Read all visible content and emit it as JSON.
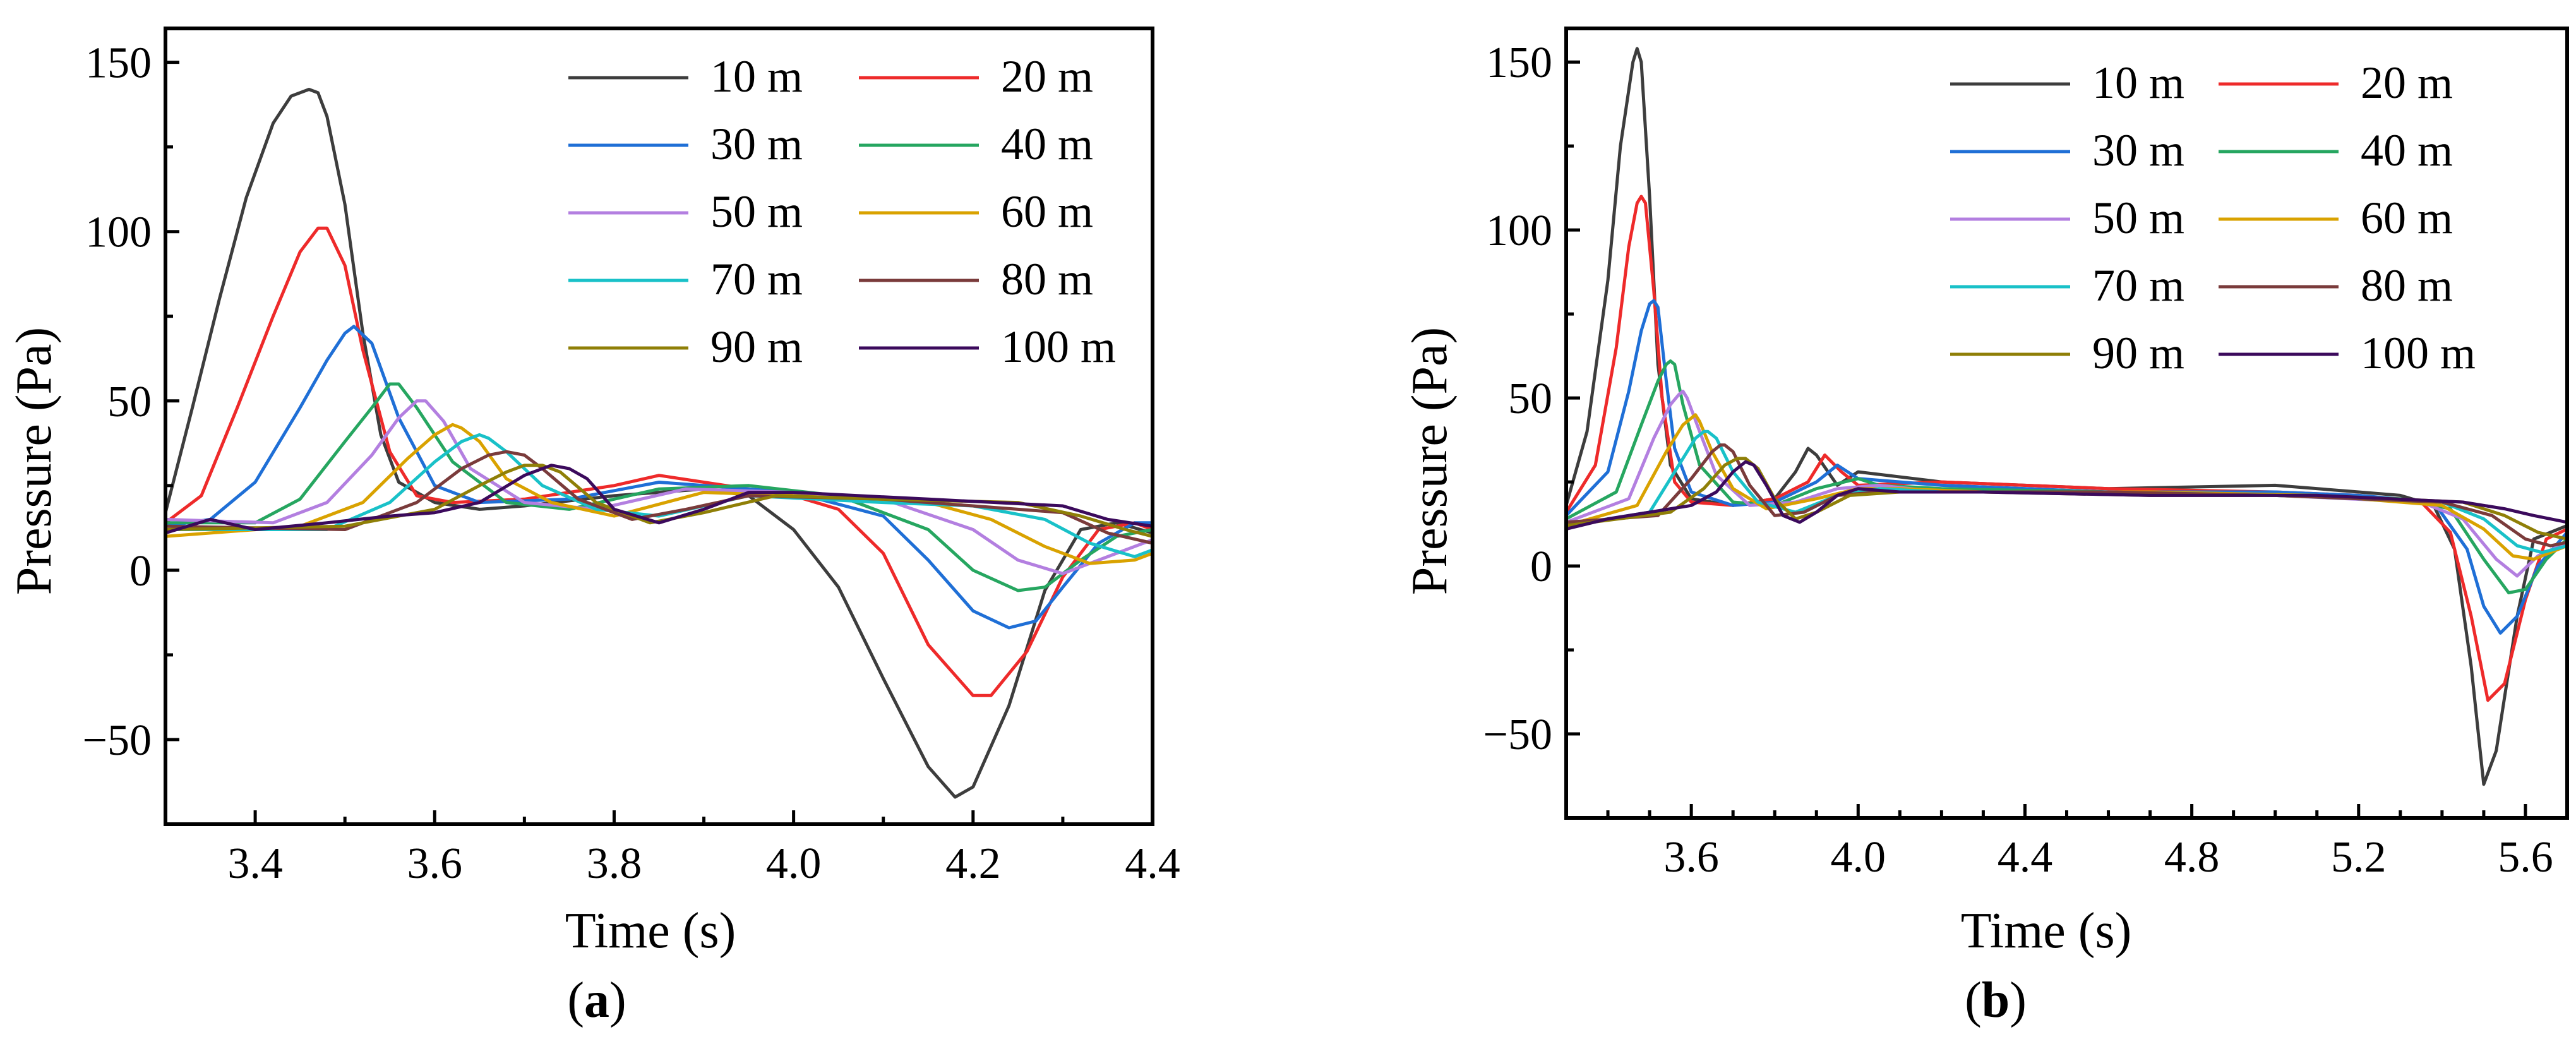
{
  "figure": {
    "panel_labels": [
      "a",
      "b"
    ]
  },
  "legend_entries": [
    "10 m",
    "20 m",
    "30 m",
    "40 m",
    "50 m",
    "60 m",
    "70 m",
    "80 m",
    "90 m",
    "100 m"
  ],
  "series_colors": [
    "#3d3d3d",
    "#ee2a2a",
    "#1f6fd6",
    "#26a660",
    "#b37fe0",
    "#d9a200",
    "#19c1c8",
    "#7a3b3b",
    "#8f7f07",
    "#3b0a5c"
  ],
  "chart_data": [
    {
      "type": "line",
      "panel": "a",
      "title": "",
      "xlabel": "Time (s)",
      "ylabel": "Pressure (Pa)",
      "xlim": [
        3.3,
        4.4
      ],
      "ylim": [
        -75,
        160
      ],
      "xticks": [
        3.4,
        3.6,
        3.8,
        4.0,
        4.2,
        4.4
      ],
      "xtick_labels": [
        "3.4",
        "3.6",
        "3.8",
        "4.0",
        "4.2",
        "4.4"
      ],
      "yticks": [
        -50,
        0,
        50,
        100,
        150
      ],
      "ytick_labels": [
        "−50",
        "0",
        "50",
        "100",
        "150"
      ],
      "legend_placement": "top-right",
      "series": [
        {
          "name": "10 m",
          "x": [
            3.3,
            3.33,
            3.36,
            3.39,
            3.42,
            3.44,
            3.46,
            3.47,
            3.48,
            3.5,
            3.52,
            3.54,
            3.56,
            3.6,
            3.65,
            3.7,
            3.8,
            3.9,
            3.95,
            4.0,
            4.05,
            4.1,
            4.15,
            4.18,
            4.2,
            4.24,
            4.28,
            4.32,
            4.36,
            4.4
          ],
          "values": [
            17,
            48,
            80,
            110,
            132,
            140,
            142,
            141,
            134,
            108,
            70,
            40,
            26,
            20,
            18,
            19,
            22,
            24,
            22,
            12,
            -5,
            -32,
            -58,
            -67,
            -64,
            -40,
            -6,
            12,
            14,
            11
          ]
        },
        {
          "name": "20 m",
          "x": [
            3.3,
            3.34,
            3.38,
            3.42,
            3.45,
            3.47,
            3.48,
            3.5,
            3.52,
            3.55,
            3.58,
            3.62,
            3.7,
            3.8,
            3.85,
            3.9,
            4.0,
            4.05,
            4.1,
            4.15,
            4.2,
            4.22,
            4.26,
            4.3,
            4.34,
            4.38,
            4.4
          ],
          "values": [
            14,
            22,
            48,
            75,
            94,
            101,
            101,
            90,
            65,
            35,
            22,
            20,
            21,
            25,
            28,
            26,
            22,
            18,
            5,
            -22,
            -37,
            -37,
            -24,
            -2,
            12,
            14,
            12
          ]
        },
        {
          "name": "30 m",
          "x": [
            3.3,
            3.35,
            3.4,
            3.45,
            3.48,
            3.5,
            3.51,
            3.53,
            3.56,
            3.6,
            3.65,
            3.75,
            3.85,
            3.9,
            4.0,
            4.1,
            4.15,
            4.2,
            4.24,
            4.27,
            4.3,
            4.34,
            4.38,
            4.4
          ],
          "values": [
            13,
            15,
            26,
            48,
            62,
            70,
            72,
            67,
            45,
            25,
            20,
            21,
            26,
            25,
            23,
            16,
            3,
            -12,
            -17,
            -15,
            -5,
            8,
            14,
            14
          ]
        },
        {
          "name": "40 m",
          "x": [
            3.3,
            3.4,
            3.45,
            3.5,
            3.53,
            3.55,
            3.56,
            3.58,
            3.62,
            3.68,
            3.75,
            3.85,
            3.95,
            4.05,
            4.15,
            4.2,
            4.25,
            4.28,
            4.32,
            4.36,
            4.4
          ],
          "values": [
            14,
            14,
            21,
            38,
            48,
            55,
            55,
            48,
            32,
            20,
            18,
            24,
            25,
            22,
            12,
            0,
            -6,
            -5,
            3,
            10,
            12
          ]
        },
        {
          "name": "50 m",
          "x": [
            3.3,
            3.42,
            3.48,
            3.53,
            3.56,
            3.58,
            3.59,
            3.61,
            3.64,
            3.7,
            3.78,
            3.88,
            4.0,
            4.1,
            4.2,
            4.25,
            4.3,
            4.35,
            4.4
          ],
          "values": [
            15,
            14,
            20,
            34,
            45,
            50,
            50,
            44,
            30,
            20,
            18,
            24,
            23,
            21,
            12,
            3,
            -1,
            4,
            9
          ]
        },
        {
          "name": "60 m",
          "x": [
            3.3,
            3.45,
            3.52,
            3.57,
            3.6,
            3.62,
            3.63,
            3.65,
            3.68,
            3.73,
            3.8,
            3.9,
            4.0,
            4.15,
            4.22,
            4.28,
            4.33,
            4.38,
            4.4
          ],
          "values": [
            10,
            13,
            20,
            33,
            40,
            43,
            42,
            38,
            27,
            20,
            16,
            23,
            22,
            20,
            15,
            7,
            2,
            3,
            5
          ]
        },
        {
          "name": "70 m",
          "x": [
            3.3,
            3.48,
            3.55,
            3.6,
            3.63,
            3.65,
            3.66,
            3.68,
            3.72,
            3.78,
            3.85,
            3.95,
            4.1,
            4.2,
            4.28,
            4.33,
            4.38,
            4.4
          ],
          "values": [
            12,
            12,
            20,
            32,
            38,
            40,
            39,
            35,
            25,
            18,
            16,
            22,
            20,
            19,
            15,
            8,
            4,
            6
          ]
        },
        {
          "name": "80 m",
          "x": [
            3.3,
            3.5,
            3.58,
            3.63,
            3.66,
            3.68,
            3.7,
            3.72,
            3.76,
            3.82,
            3.88,
            3.95,
            4.1,
            4.2,
            4.3,
            4.35,
            4.4
          ],
          "values": [
            13,
            12,
            20,
            30,
            34,
            35,
            34,
            30,
            21,
            15,
            18,
            22,
            21,
            19,
            17,
            11,
            8
          ]
        },
        {
          "name": "90 m",
          "x": [
            3.3,
            3.5,
            3.6,
            3.65,
            3.68,
            3.7,
            3.72,
            3.74,
            3.78,
            3.84,
            3.9,
            3.98,
            4.1,
            4.25,
            4.32,
            4.37,
            4.4
          ],
          "values": [
            12,
            13,
            18,
            25,
            29,
            31,
            31,
            29,
            20,
            14,
            17,
            22,
            21,
            20,
            16,
            12,
            10
          ]
        },
        {
          "name": "100 m",
          "x": [
            3.3,
            3.35,
            3.4,
            3.48,
            3.55,
            3.6,
            3.65,
            3.7,
            3.73,
            3.75,
            3.77,
            3.8,
            3.85,
            3.9,
            3.95,
            4.0,
            4.15,
            4.3,
            4.35,
            4.4
          ],
          "values": [
            11,
            15,
            12,
            14,
            16,
            17,
            20,
            28,
            31,
            30,
            27,
            18,
            14,
            18,
            23,
            23,
            21,
            19,
            15,
            13
          ]
        }
      ]
    },
    {
      "type": "line",
      "panel": "b",
      "title": "",
      "xlabel": "Time (s)",
      "ylabel": "Pressure (Pa)",
      "xlim": [
        3.3,
        5.7
      ],
      "ylim": [
        -75,
        160
      ],
      "xticks": [
        3.6,
        4.0,
        4.4,
        4.8,
        5.2,
        5.6
      ],
      "xtick_labels": [
        "3.6",
        "4.0",
        "4.4",
        "4.8",
        "5.2",
        "5.6"
      ],
      "yticks": [
        -50,
        0,
        50,
        100,
        150
      ],
      "ytick_labels": [
        "−50",
        "0",
        "50",
        "100",
        "150"
      ],
      "legend_placement": "top-right",
      "series": [
        {
          "name": "10 m",
          "x": [
            3.3,
            3.35,
            3.4,
            3.43,
            3.46,
            3.47,
            3.48,
            3.5,
            3.52,
            3.55,
            3.6,
            3.7,
            3.8,
            3.85,
            3.88,
            3.9,
            3.95,
            4.0,
            4.2,
            4.6,
            5.0,
            5.2,
            5.3,
            5.38,
            5.43,
            5.47,
            5.5,
            5.53,
            5.58,
            5.62,
            5.7
          ],
          "values": [
            18,
            40,
            85,
            125,
            150,
            154,
            150,
            110,
            60,
            30,
            20,
            18,
            20,
            28,
            35,
            33,
            24,
            28,
            25,
            23,
            24,
            22,
            21,
            18,
            5,
            -30,
            -65,
            -55,
            -15,
            8,
            12
          ]
        },
        {
          "name": "20 m",
          "x": [
            3.3,
            3.37,
            3.42,
            3.45,
            3.47,
            3.48,
            3.49,
            3.51,
            3.53,
            3.56,
            3.6,
            3.7,
            3.8,
            3.88,
            3.92,
            3.96,
            4.0,
            4.2,
            4.6,
            5.0,
            5.2,
            5.35,
            5.42,
            5.47,
            5.51,
            5.55,
            5.6,
            5.65,
            5.7
          ],
          "values": [
            16,
            30,
            65,
            95,
            108,
            110,
            108,
            82,
            50,
            25,
            19,
            18,
            20,
            25,
            33,
            28,
            24,
            25,
            23,
            22,
            21,
            19,
            10,
            -15,
            -40,
            -35,
            -10,
            8,
            11
          ]
        },
        {
          "name": "30 m",
          "x": [
            3.3,
            3.4,
            3.45,
            3.48,
            3.5,
            3.51,
            3.52,
            3.54,
            3.56,
            3.6,
            3.7,
            3.8,
            3.9,
            3.95,
            4.0,
            4.2,
            4.6,
            5.0,
            5.2,
            5.38,
            5.46,
            5.5,
            5.54,
            5.58,
            5.63,
            5.7
          ],
          "values": [
            15,
            28,
            52,
            70,
            78,
            79,
            77,
            55,
            35,
            22,
            18,
            19,
            25,
            30,
            26,
            24,
            22,
            22,
            21,
            19,
            5,
            -12,
            -20,
            -15,
            0,
            10
          ]
        },
        {
          "name": "40 m",
          "x": [
            3.3,
            3.42,
            3.48,
            3.52,
            3.54,
            3.55,
            3.56,
            3.58,
            3.62,
            3.7,
            3.8,
            3.9,
            4.0,
            4.05,
            4.2,
            4.6,
            5.0,
            5.3,
            5.42,
            5.5,
            5.56,
            5.6,
            5.65,
            5.7
          ],
          "values": [
            14,
            22,
            42,
            55,
            60,
            61,
            60,
            48,
            30,
            19,
            18,
            23,
            26,
            24,
            23,
            22,
            21,
            20,
            17,
            2,
            -8,
            -7,
            2,
            8
          ]
        },
        {
          "name": "50 m",
          "x": [
            3.3,
            3.45,
            3.51,
            3.55,
            3.57,
            3.58,
            3.59,
            3.62,
            3.66,
            3.74,
            3.85,
            3.95,
            4.05,
            4.2,
            4.6,
            5.0,
            5.35,
            5.45,
            5.53,
            5.58,
            5.63,
            5.7
          ],
          "values": [
            13,
            20,
            38,
            48,
            51,
            52,
            50,
            40,
            27,
            18,
            19,
            23,
            24,
            22,
            22,
            21,
            19,
            14,
            2,
            -3,
            3,
            7
          ]
        },
        {
          "name": "60 m",
          "x": [
            3.3,
            3.47,
            3.54,
            3.58,
            3.6,
            3.61,
            3.62,
            3.65,
            3.7,
            3.78,
            3.9,
            4.0,
            4.1,
            4.3,
            4.7,
            5.1,
            5.4,
            5.5,
            5.57,
            5.62,
            5.7
          ],
          "values": [
            12,
            18,
            34,
            42,
            44,
            45,
            43,
            34,
            23,
            17,
            20,
            23,
            23,
            22,
            22,
            21,
            18,
            11,
            3,
            2,
            6
          ]
        },
        {
          "name": "70 m",
          "x": [
            3.3,
            3.5,
            3.57,
            3.61,
            3.63,
            3.64,
            3.66,
            3.7,
            3.76,
            3.85,
            3.95,
            4.05,
            4.2,
            4.6,
            5.0,
            5.4,
            5.5,
            5.58,
            5.64,
            5.7
          ],
          "values": [
            12,
            16,
            30,
            38,
            40,
            40,
            38,
            28,
            19,
            16,
            21,
            23,
            22,
            22,
            21,
            19,
            14,
            6,
            4,
            6
          ]
        },
        {
          "name": "80 m",
          "x": [
            3.3,
            3.52,
            3.6,
            3.65,
            3.67,
            3.68,
            3.7,
            3.74,
            3.8,
            3.87,
            3.95,
            4.05,
            4.2,
            4.6,
            5.0,
            5.4,
            5.52,
            5.6,
            5.66,
            5.7
          ],
          "values": [
            13,
            15,
            26,
            34,
            36,
            36,
            34,
            24,
            15,
            16,
            21,
            22,
            22,
            22,
            21,
            19,
            15,
            8,
            6,
            7
          ]
        },
        {
          "name": "90 m",
          "x": [
            3.3,
            3.55,
            3.63,
            3.68,
            3.71,
            3.73,
            3.76,
            3.8,
            3.85,
            3.9,
            3.98,
            4.1,
            4.3,
            4.7,
            5.1,
            5.45,
            5.55,
            5.63,
            5.7
          ],
          "values": [
            12,
            16,
            23,
            30,
            32,
            32,
            29,
            20,
            14,
            16,
            21,
            22,
            22,
            21,
            21,
            19,
            15,
            10,
            8
          ]
        },
        {
          "name": "100 m",
          "x": [
            3.3,
            3.4,
            3.5,
            3.6,
            3.66,
            3.7,
            3.73,
            3.75,
            3.78,
            3.82,
            3.86,
            3.9,
            3.95,
            4.0,
            4.1,
            4.3,
            4.7,
            5.1,
            5.45,
            5.55,
            5.62,
            5.7
          ],
          "values": [
            11,
            14,
            16,
            18,
            22,
            28,
            31,
            30,
            24,
            15,
            13,
            16,
            21,
            23,
            22,
            22,
            21,
            21,
            19,
            17,
            15,
            13
          ]
        }
      ]
    }
  ]
}
